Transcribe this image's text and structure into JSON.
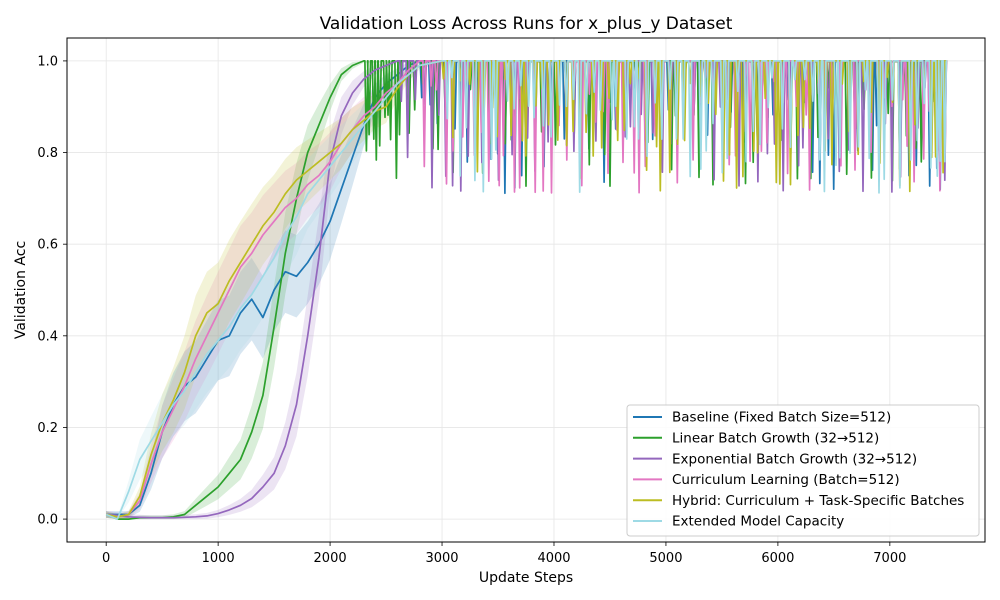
{
  "chart_data": {
    "type": "line",
    "title": "Validation Loss Across Runs for x_plus_y Dataset",
    "xlabel": "Update Steps",
    "ylabel": "Validation Acc",
    "xlim": [
      -350,
      7850
    ],
    "ylim": [
      -0.05,
      1.05
    ],
    "xticks": [
      0,
      1000,
      2000,
      3000,
      4000,
      5000,
      6000,
      7000
    ],
    "yticks": [
      0.0,
      0.2,
      0.4,
      0.6,
      0.8,
      1.0
    ],
    "grid": true,
    "legend_position": "lower-right",
    "colors": [
      "#1f77b4",
      "#2ca02c",
      "#9467bd",
      "#e377c2",
      "#bcbd22",
      "#9edae5"
    ],
    "series": [
      {
        "name": "Baseline (Fixed Batch Size=512)",
        "color": "#1f77b4",
        "x": [
          0,
          100,
          200,
          300,
          400,
          500,
          600,
          700,
          800,
          900,
          1000,
          1100,
          1200,
          1300,
          1400,
          1500,
          1600,
          1700,
          1800,
          1900,
          2000,
          2100,
          2200,
          2300,
          2400,
          2500,
          2600,
          2700,
          2800,
          3000,
          3200,
          3400,
          3600,
          3800,
          4000,
          4200,
          4400,
          4600,
          4800,
          5000,
          5200,
          5400,
          5600,
          5800,
          6000,
          6200,
          6400,
          6600,
          6800,
          7000,
          7200,
          7400,
          7500
        ],
        "values": [
          0.01,
          0.01,
          0.01,
          0.03,
          0.1,
          0.19,
          0.25,
          0.29,
          0.31,
          0.35,
          0.39,
          0.4,
          0.45,
          0.48,
          0.44,
          0.5,
          0.54,
          0.53,
          0.56,
          0.6,
          0.65,
          0.72,
          0.79,
          0.86,
          0.92,
          0.95,
          0.97,
          0.99,
          1.0,
          1.0,
          1.0,
          1.0,
          1.0,
          1.0,
          1.0,
          1.0,
          1.0,
          1.0,
          1.0,
          1.0,
          1.0,
          1.0,
          1.0,
          1.0,
          1.0,
          1.0,
          1.0,
          1.0,
          1.0,
          1.0,
          1.0,
          1.0,
          1.0
        ]
      },
      {
        "name": "Linear Batch Growth (32→512)",
        "color": "#2ca02c",
        "x": [
          0,
          100,
          200,
          300,
          400,
          500,
          600,
          700,
          800,
          900,
          1000,
          1100,
          1200,
          1300,
          1400,
          1500,
          1600,
          1700,
          1800,
          1900,
          2000,
          2100,
          2200,
          2300,
          2400,
          2500,
          2600,
          2800,
          3000,
          3200,
          3400,
          3600,
          3800,
          4000,
          4200,
          4400,
          4600,
          4800,
          5000,
          5200,
          5400,
          5600,
          5800,
          6000,
          6200,
          6400,
          6600,
          6800,
          7000,
          7200,
          7400,
          7500
        ],
        "values": [
          0.01,
          0.0,
          0.0,
          0.003,
          0.003,
          0.003,
          0.005,
          0.01,
          0.03,
          0.05,
          0.07,
          0.1,
          0.13,
          0.19,
          0.27,
          0.42,
          0.58,
          0.7,
          0.8,
          0.86,
          0.92,
          0.97,
          0.99,
          1.0,
          1.0,
          1.0,
          1.0,
          1.0,
          1.0,
          1.0,
          1.0,
          1.0,
          1.0,
          1.0,
          1.0,
          1.0,
          1.0,
          1.0,
          1.0,
          1.0,
          1.0,
          1.0,
          1.0,
          1.0,
          1.0,
          1.0,
          1.0,
          1.0,
          1.0,
          1.0,
          1.0,
          1.0
        ]
      },
      {
        "name": "Exponential Batch Growth (32→512)",
        "color": "#9467bd",
        "x": [
          0,
          100,
          200,
          300,
          400,
          500,
          600,
          700,
          800,
          900,
          1000,
          1100,
          1200,
          1300,
          1400,
          1500,
          1600,
          1700,
          1800,
          1900,
          2000,
          2100,
          2200,
          2300,
          2400,
          2500,
          2600,
          2800,
          3000,
          3200,
          3400,
          3600,
          3800,
          4000,
          4200,
          4400,
          4600,
          4800,
          5000,
          5200,
          5400,
          5600,
          5800,
          6000,
          6200,
          6400,
          6600,
          6800,
          7000,
          7200,
          7400,
          7500
        ],
        "values": [
          0.01,
          0.008,
          0.005,
          0.004,
          0.003,
          0.003,
          0.003,
          0.004,
          0.005,
          0.007,
          0.012,
          0.02,
          0.03,
          0.045,
          0.07,
          0.1,
          0.16,
          0.25,
          0.4,
          0.57,
          0.78,
          0.88,
          0.93,
          0.96,
          0.98,
          0.99,
          1.0,
          1.0,
          1.0,
          1.0,
          1.0,
          1.0,
          1.0,
          1.0,
          1.0,
          1.0,
          1.0,
          1.0,
          1.0,
          1.0,
          1.0,
          1.0,
          1.0,
          1.0,
          1.0,
          1.0,
          1.0,
          1.0,
          1.0,
          1.0,
          1.0,
          1.0
        ]
      },
      {
        "name": "Curriculum Learning (Batch=512)",
        "color": "#e377c2",
        "x": [
          0,
          100,
          200,
          300,
          400,
          500,
          600,
          700,
          800,
          900,
          1000,
          1100,
          1200,
          1300,
          1400,
          1500,
          1600,
          1700,
          1800,
          1900,
          2000,
          2100,
          2200,
          2300,
          2400,
          2500,
          2600,
          2700,
          2800,
          3000,
          3200,
          3400,
          3600,
          3800,
          4000,
          4200,
          4400,
          4600,
          4800,
          5000,
          5200,
          5400,
          5600,
          5800,
          6000,
          6200,
          6400,
          6600,
          6800,
          7000,
          7200,
          7400,
          7500
        ],
        "values": [
          0.01,
          0.005,
          0.01,
          0.04,
          0.12,
          0.19,
          0.24,
          0.29,
          0.35,
          0.4,
          0.45,
          0.5,
          0.55,
          0.58,
          0.62,
          0.65,
          0.68,
          0.7,
          0.73,
          0.75,
          0.78,
          0.82,
          0.85,
          0.88,
          0.9,
          0.93,
          0.95,
          0.98,
          1.0,
          1.0,
          1.0,
          1.0,
          1.0,
          1.0,
          1.0,
          1.0,
          1.0,
          1.0,
          1.0,
          1.0,
          1.0,
          1.0,
          1.0,
          1.0,
          1.0,
          1.0,
          1.0,
          1.0,
          1.0,
          1.0,
          1.0,
          1.0,
          1.0
        ]
      },
      {
        "name": "Hybrid: Curriculum + Task-Specific Batches",
        "color": "#bcbd22",
        "x": [
          0,
          100,
          200,
          300,
          400,
          500,
          600,
          700,
          800,
          900,
          1000,
          1100,
          1200,
          1300,
          1400,
          1500,
          1600,
          1700,
          1800,
          1900,
          2000,
          2100,
          2200,
          2300,
          2400,
          2500,
          2600,
          2700,
          2800,
          3000,
          3200,
          3400,
          3600,
          3800,
          4000,
          4200,
          4400,
          4600,
          4800,
          5000,
          5200,
          5400,
          5600,
          5800,
          6000,
          6200,
          6400,
          6600,
          6800,
          7000,
          7200,
          7400,
          7500
        ],
        "values": [
          0.01,
          0.005,
          0.01,
          0.05,
          0.14,
          0.21,
          0.26,
          0.32,
          0.4,
          0.45,
          0.47,
          0.52,
          0.56,
          0.6,
          0.64,
          0.67,
          0.71,
          0.74,
          0.76,
          0.78,
          0.8,
          0.82,
          0.85,
          0.87,
          0.89,
          0.9,
          0.94,
          0.97,
          0.99,
          1.0,
          1.0,
          1.0,
          1.0,
          1.0,
          1.0,
          1.0,
          1.0,
          1.0,
          1.0,
          1.0,
          1.0,
          1.0,
          1.0,
          1.0,
          1.0,
          1.0,
          1.0,
          1.0,
          1.0,
          1.0,
          1.0,
          1.0,
          1.0
        ]
      },
      {
        "name": "Extended Model Capacity",
        "color": "#9edae5",
        "x": [
          0,
          100,
          200,
          300,
          400,
          500,
          600,
          700,
          800,
          900,
          1000,
          1100,
          1200,
          1300,
          1400,
          1500,
          1600,
          1700,
          1800,
          1900,
          2000,
          2100,
          2200,
          2300,
          2400,
          2500,
          2600,
          2700,
          2800,
          3000,
          3200,
          3400,
          3600,
          3800,
          4000,
          4200,
          4400,
          4600,
          4800,
          5000,
          5200,
          5400,
          5600,
          5800,
          6000,
          6200,
          6400,
          6600,
          6800,
          7000,
          7200,
          7400,
          7500
        ],
        "values": [
          0.01,
          0.0,
          0.06,
          0.13,
          0.17,
          0.21,
          0.25,
          0.28,
          0.32,
          0.36,
          0.39,
          0.42,
          0.46,
          0.49,
          0.53,
          0.57,
          0.62,
          0.66,
          0.71,
          0.74,
          0.77,
          0.8,
          0.83,
          0.86,
          0.89,
          0.92,
          0.95,
          0.97,
          0.99,
          1.0,
          1.0,
          1.0,
          1.0,
          1.0,
          1.0,
          1.0,
          1.0,
          1.0,
          1.0,
          1.0,
          1.0,
          1.0,
          1.0,
          1.0,
          1.0,
          1.0,
          1.0,
          1.0,
          1.0,
          1.0,
          1.0,
          1.0,
          1.0
        ]
      }
    ]
  }
}
